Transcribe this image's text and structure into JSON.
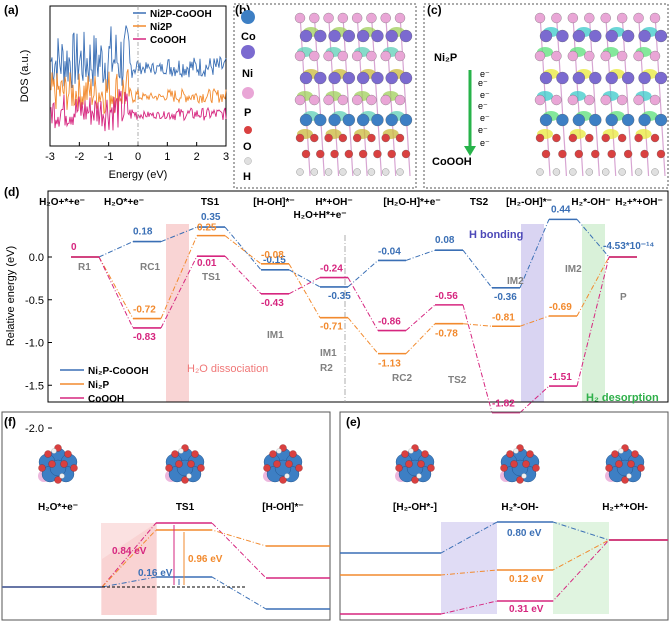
{
  "colors": {
    "ni2p_cooh": "#3a6fb5",
    "ni2p": "#f28a2e",
    "cooh": "#d6267f",
    "grey_label": "#808080",
    "pink_band": "#f8c9c9",
    "violet_band": "#cfc9ef",
    "green_band": "#cfeecf",
    "co": "#3d7fc4",
    "ni": "#7b6ad0",
    "p": "#e9a6d6",
    "o": "#d94040",
    "h": "#e0e0e0"
  },
  "panel_a": {
    "label": "(a)",
    "ylabel": "DOS (a.u.)",
    "xlabel": "Energy (eV)",
    "xticks": [
      "-3",
      "-2",
      "-1",
      "0",
      "1",
      "2",
      "3"
    ],
    "legend": [
      "Ni2P-CoOOH",
      "Ni2P",
      "CoOOH"
    ]
  },
  "panel_b": {
    "label": "(b)",
    "legend": [
      "Co",
      "Ni",
      "P",
      "O",
      "H"
    ]
  },
  "panel_c": {
    "label": "(c)",
    "top": "Ni₂P",
    "bottom": "CoOOH",
    "electron": "e⁻"
  },
  "panel_d": {
    "label": "(d)",
    "ylabel": "Relative energy (eV)",
    "yticks": [
      "0.0",
      "-0.5",
      "-1.0",
      "-1.5",
      "-2.0"
    ],
    "states": [
      "H₂O+*+e⁻",
      "H₂O*+e⁻",
      "TS1",
      "[H-OH]*⁻",
      "H*+OH⁻",
      "[H₂O-H]*+e⁻",
      "TS2",
      "[H₂-OH]*⁻",
      "H₂*-OH⁻",
      "H₂+*+OH⁻"
    ],
    "extra_state": "H₂O+H*+e⁻",
    "step_labels": [
      "R1",
      "RC1",
      "TS1",
      "IM1",
      "IM1",
      "R2",
      "RC2",
      "TS2",
      "IM2",
      "IM2",
      "P"
    ],
    "band_labels": {
      "dissociation": "H₂O dissociation",
      "bonding": "H bonding",
      "desorption": "H₂ desorption"
    },
    "legend": [
      "Ni₂P-CoOOH",
      "Ni₂P",
      "CoOOH"
    ],
    "values": {
      "ni2p_cooh": [
        "0",
        "0.18",
        "0.35",
        "-0.15",
        "-0.35",
        "-0.04",
        "0.08",
        "-0.36",
        "0.44",
        "-4.53*10⁻¹⁴"
      ],
      "ni2p": [
        "-0.72",
        "0.25",
        "-0.08",
        "-0.71",
        "-1.13",
        "-0.78",
        "-0.81",
        "-0.69"
      ],
      "cooh": [
        "-0.83",
        "0.01",
        "-0.43",
        "-0.24",
        "-0.86",
        "-0.56",
        "-1.82",
        "-1.51"
      ]
    }
  },
  "panel_f": {
    "label": "(f)",
    "states": [
      "H₂O*+e⁻",
      "TS1",
      "[H-OH]*⁻"
    ],
    "barriers": [
      "0.84 eV",
      "0.96 eV",
      "0.16 eV"
    ]
  },
  "panel_e": {
    "label": "(e)",
    "states": [
      "[H₂-OH*-]",
      "H₂*-OH-",
      "H₂+*+OH-"
    ],
    "barriers": [
      "0.80 eV",
      "0.12 eV",
      "0.31 eV"
    ]
  },
  "chart_data": [
    {
      "type": "line",
      "title": "",
      "xlabel": "Energy (eV)",
      "ylabel": "DOS (a.u.)",
      "xlim": [
        -3,
        3
      ],
      "series": [
        {
          "name": "Ni2P-CoOOH"
        },
        {
          "name": "Ni2P"
        },
        {
          "name": "CoOOH"
        }
      ]
    },
    {
      "type": "line",
      "title": "",
      "xlabel": "",
      "ylabel": "Relative energy (eV)",
      "ylim": [
        -2.0,
        0.6
      ],
      "categories": [
        "R1",
        "RC1",
        "TS1",
        "IM1",
        "R2",
        "RC2",
        "TS2",
        "IM2",
        "IM2'",
        "P"
      ],
      "series": [
        {
          "name": "Ni2P-CoOOH",
          "values": [
            0,
            0.18,
            0.35,
            -0.15,
            -0.35,
            -0.04,
            0.08,
            -0.36,
            0.44,
            0
          ]
        },
        {
          "name": "Ni2P",
          "values": [
            0,
            -0.72,
            0.25,
            -0.08,
            -0.71,
            -1.13,
            -0.78,
            -0.81,
            -0.69,
            0
          ]
        },
        {
          "name": "CoOOH",
          "values": [
            0,
            -0.83,
            0.01,
            -0.43,
            -0.24,
            -0.86,
            -0.56,
            -1.82,
            -1.51,
            0
          ]
        }
      ]
    }
  ]
}
